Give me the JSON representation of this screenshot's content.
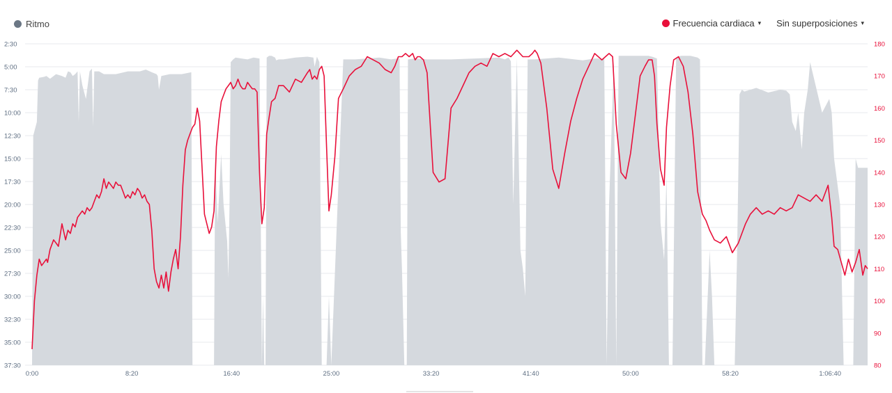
{
  "legend": {
    "pace_label": "Ritmo",
    "hr_label": "Frecuencia cardiaca",
    "overlay_label": "Sin superposiciones",
    "caret": "▾"
  },
  "colors": {
    "pace_fill": "#d5d9de",
    "pace_dot": "#6b7785",
    "hr_line": "#e8103a",
    "grid": "#e7e9ec",
    "left_tick": "#5e6e82",
    "right_tick": "#e8103a"
  },
  "chart_data": {
    "type": "area",
    "x_ticks": [
      "0:00",
      "8:20",
      "16:40",
      "25:00",
      "33:20",
      "41:40",
      "50:00",
      "58:20",
      "1:06:40"
    ],
    "y_left_ticks": [
      "2:30",
      "5:00",
      "7:30",
      "10:00",
      "12:30",
      "15:00",
      "17:30",
      "20:00",
      "22:30",
      "25:00",
      "27:30",
      "30:00",
      "32:30",
      "35:00",
      "37:30"
    ],
    "y_right_ticks": [
      "180",
      "170",
      "160",
      "150",
      "140",
      "130",
      "120",
      "110",
      "100",
      "90",
      "80"
    ],
    "x_range_min": [
      0,
      69.8
    ],
    "y_left_range_min_per_km": [
      2.5,
      37.5
    ],
    "y_right_range_bpm": [
      80,
      180
    ],
    "series": [
      {
        "name": "Ritmo",
        "axis": "left",
        "x_min": [
          0,
          0.1,
          0.4,
          0.5,
          0.6,
          1.0,
          1.2,
          1.5,
          2.0,
          2.5,
          2.8,
          3.0,
          3.2,
          3.4,
          3.6,
          3.8,
          3.9,
          4.0,
          4.2,
          4.5,
          4.8,
          5.0,
          5.1,
          5.2,
          5.6,
          6.0,
          7.0,
          8.0,
          9.0,
          9.5,
          10.0,
          10.4,
          10.5,
          10.6,
          10.8,
          11.5,
          12.5,
          13.3,
          13.4,
          15.2,
          15.3,
          15.5,
          15.8,
          16.0,
          16.3,
          16.4,
          16.5,
          16.6,
          16.8,
          17.0,
          17.5,
          18.0,
          18.5,
          19.0,
          19.2,
          19.3,
          19.4,
          19.5,
          19.6,
          19.8,
          20.0,
          20.3,
          20.4,
          20.6,
          21.0,
          22.0,
          23.0,
          23.5,
          23.6,
          23.8,
          24.0,
          24.2,
          24.6,
          24.8,
          25.0,
          26.0,
          27.0,
          28.0,
          29.0,
          30.0,
          30.5,
          30.6,
          30.7,
          30.8,
          30.9,
          31.1,
          31.2,
          31.3,
          31.4,
          32.0,
          33.0,
          35.0,
          37.0,
          39.0,
          39.5,
          39.8,
          40.0,
          40.2,
          40.5,
          40.8,
          41.0,
          41.2,
          41.4,
          41.6,
          42.0,
          44.0,
          46.0,
          47.0,
          47.3,
          47.5,
          47.8,
          48.0,
          48.2,
          48.6,
          48.8,
          49.0,
          50.0,
          51.0,
          51.5,
          51.8,
          52.0,
          52.2,
          52.5,
          52.8,
          53.0,
          53.2,
          53.5,
          53.8,
          54.2,
          55.0,
          55.6,
          55.8,
          56.0,
          56.2,
          56.6,
          56.8,
          57.0,
          57.5,
          58.0,
          58.5,
          58.7,
          58.9,
          59.1,
          59.3,
          59.5,
          60.5,
          61.5,
          62.5,
          63.0,
          63.3,
          63.5,
          63.8,
          64.0,
          64.3,
          64.5,
          64.8,
          65.0,
          66.0,
          66.6,
          66.8,
          67.0,
          67.5,
          67.8,
          68.0,
          68.2,
          68.4,
          68.6,
          68.8,
          69.0,
          69.5,
          69.8
        ],
        "y_min_per_km": [
          37.5,
          12.5,
          11.0,
          6.5,
          6.2,
          6.1,
          6.0,
          6.3,
          5.8,
          6.0,
          6.2,
          5.5,
          5.6,
          6.0,
          5.8,
          5.5,
          11.0,
          5.5,
          7.0,
          8.5,
          5.5,
          5.2,
          11.5,
          5.5,
          5.5,
          5.8,
          5.8,
          5.5,
          5.5,
          5.3,
          5.6,
          5.8,
          6.0,
          7.5,
          6.0,
          5.8,
          5.8,
          5.6,
          37.5,
          37.5,
          15.0,
          22.0,
          14.5,
          20.0,
          24.0,
          28.0,
          20.0,
          4.5,
          4.2,
          4.0,
          4.1,
          4.2,
          4.0,
          4.1,
          37.5,
          30.0,
          37.5,
          37.5,
          4.0,
          3.8,
          3.8,
          4.0,
          4.3,
          4.2,
          4.2,
          4.0,
          3.9,
          4.0,
          5.0,
          3.9,
          4.5,
          37.5,
          37.5,
          30.0,
          37.5,
          4.2,
          4.2,
          4.1,
          4.0,
          4.2,
          4.1,
          4.0,
          4.2,
          23.0,
          27.0,
          37.5,
          37.5,
          37.5,
          4.2,
          4.1,
          4.2,
          4.2,
          4.1,
          4.0,
          4.2,
          4.0,
          4.4,
          20.0,
          4.0,
          25.0,
          27.0,
          30.0,
          4.2,
          4.2,
          4.2,
          4.0,
          4.3,
          4.1,
          4.1,
          4.2,
          4.0,
          37.5,
          20.0,
          4.5,
          37.5,
          3.8,
          3.8,
          3.8,
          3.8,
          3.9,
          4.0,
          4.1,
          22.0,
          26.0,
          17.0,
          37.5,
          37.5,
          4.0,
          3.8,
          3.8,
          4.0,
          4.2,
          37.5,
          37.5,
          25.0,
          30.0,
          37.5,
          37.5,
          37.5,
          37.5,
          37.5,
          25.0,
          8.0,
          7.5,
          7.7,
          7.3,
          7.8,
          7.5,
          7.6,
          8.0,
          11.0,
          12.0,
          10.0,
          14.0,
          10.0,
          7.5,
          4.5,
          10.0,
          8.5,
          10.0,
          15.0,
          20.0,
          37.5,
          37.5,
          37.5,
          37.5,
          37.5,
          15.0,
          16.0,
          16.0,
          16.0,
          16.0,
          18.0
        ]
      },
      {
        "name": "Frecuencia cardiaca",
        "axis": "right",
        "x_min": [
          0,
          0.2,
          0.4,
          0.6,
          0.8,
          1.0,
          1.2,
          1.3,
          1.5,
          1.8,
          2.0,
          2.2,
          2.5,
          2.8,
          3.0,
          3.2,
          3.4,
          3.6,
          3.8,
          4.0,
          4.2,
          4.4,
          4.6,
          4.8,
          5.0,
          5.2,
          5.4,
          5.6,
          5.8,
          6.0,
          6.2,
          6.4,
          6.6,
          6.8,
          7.0,
          7.2,
          7.4,
          7.6,
          7.8,
          8.0,
          8.2,
          8.4,
          8.6,
          8.8,
          9.0,
          9.2,
          9.4,
          9.6,
          9.8,
          10.0,
          10.2,
          10.4,
          10.6,
          10.8,
          11.0,
          11.2,
          11.4,
          11.6,
          11.8,
          12.0,
          12.2,
          12.4,
          12.6,
          12.8,
          13.0,
          13.2,
          13.4,
          13.6,
          13.8,
          14.0,
          14.4,
          14.8,
          15.0,
          15.2,
          15.4,
          15.6,
          15.8,
          16.0,
          16.2,
          16.4,
          16.6,
          16.8,
          17.0,
          17.2,
          17.4,
          17.6,
          17.8,
          18.0,
          18.2,
          18.4,
          18.6,
          18.8,
          19.0,
          19.2,
          19.4,
          19.6,
          19.8,
          20.0,
          20.3,
          20.6,
          21.0,
          21.5,
          22.0,
          22.5,
          23.0,
          23.2,
          23.4,
          23.6,
          23.8,
          24.0,
          24.2,
          24.4,
          24.6,
          24.8,
          25.0,
          25.3,
          25.6,
          26.0,
          26.5,
          27.0,
          27.5,
          28.0,
          28.5,
          29.0,
          29.5,
          30.0,
          30.3,
          30.6,
          30.9,
          31.2,
          31.5,
          31.8,
          32.0,
          32.2,
          32.4,
          32.7,
          33.0,
          33.5,
          34.0,
          34.5,
          35.0,
          35.5,
          36.0,
          36.5,
          37.0,
          37.5,
          38.0,
          38.5,
          39.0,
          39.5,
          40.0,
          40.5,
          41.0,
          41.5,
          41.8,
          42.0,
          42.2,
          42.5,
          43.0,
          43.5,
          44.0,
          44.5,
          45.0,
          45.5,
          46.0,
          46.5,
          47.0,
          47.3,
          47.6,
          47.9,
          48.2,
          48.5,
          48.8,
          49.2,
          49.6,
          50.0,
          50.4,
          50.8,
          51.2,
          51.5,
          51.8,
          52.0,
          52.2,
          52.5,
          52.8,
          53.0,
          53.3,
          53.6,
          54.0,
          54.4,
          54.8,
          55.2,
          55.6,
          56.0,
          56.3,
          56.6,
          57.0,
          57.5,
          58.0,
          58.5,
          59.0,
          59.3,
          59.6,
          60.0,
          60.5,
          61.0,
          61.5,
          62.0,
          62.5,
          63.0,
          63.5,
          64.0,
          64.5,
          65.0,
          65.5,
          66.0,
          66.5,
          66.8,
          67.0,
          67.3,
          67.6,
          67.9,
          68.2,
          68.5,
          68.8,
          69.1,
          69.4,
          69.6,
          69.8
        ],
        "y_bpm": [
          85,
          100,
          108,
          113,
          111,
          112,
          113,
          112,
          116,
          119,
          118,
          117,
          124,
          119,
          122,
          121,
          124,
          123,
          126,
          127,
          128,
          127,
          129,
          128,
          129,
          131,
          133,
          132,
          134,
          138,
          135,
          137,
          136,
          135,
          137,
          136,
          136,
          134,
          132,
          133,
          132,
          134,
          133,
          135,
          134,
          132,
          133,
          131,
          130,
          122,
          110,
          106,
          104,
          108,
          104,
          109,
          103,
          109,
          113,
          116,
          110,
          120,
          136,
          147,
          150,
          152,
          154,
          155,
          160,
          156,
          127,
          121,
          123,
          128,
          148,
          156,
          162,
          164,
          166,
          167,
          168,
          166,
          167,
          169,
          167,
          166,
          166,
          168,
          167,
          166,
          166,
          165,
          140,
          124,
          129,
          152,
          157,
          162,
          163,
          167,
          167,
          165,
          169,
          168,
          171,
          172,
          169,
          170,
          169,
          172,
          173,
          170,
          148,
          128,
          133,
          145,
          163,
          166,
          170,
          172,
          173,
          176,
          175,
          174,
          172,
          171,
          173,
          176,
          176,
          177,
          176,
          177,
          175,
          176,
          176,
          175,
          171,
          140,
          137,
          138,
          160,
          163,
          167,
          171,
          173,
          174,
          173,
          177,
          176,
          177,
          176,
          178,
          176,
          176,
          177,
          178,
          177,
          174,
          160,
          141,
          135,
          146,
          156,
          163,
          169,
          173,
          177,
          176,
          175,
          176,
          177,
          176,
          155,
          140,
          138,
          146,
          158,
          170,
          173,
          175,
          175,
          170,
          155,
          141,
          136,
          154,
          167,
          175,
          176,
          173,
          165,
          152,
          134,
          127,
          125,
          122,
          119,
          118,
          120,
          115,
          118,
          121,
          124,
          127,
          129,
          127,
          128,
          127,
          129,
          128,
          129,
          133,
          132,
          131,
          133,
          131,
          136,
          126,
          117,
          116,
          112,
          108,
          113,
          109,
          112,
          116,
          108,
          111,
          110,
          113
        ]
      }
    ]
  }
}
